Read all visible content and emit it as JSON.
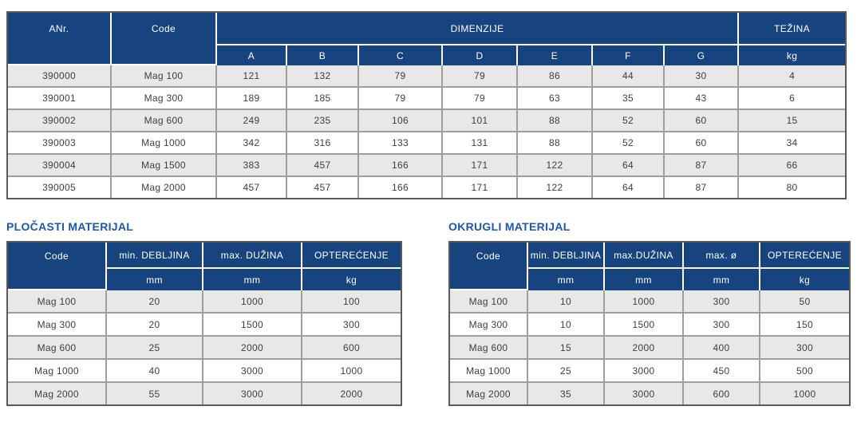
{
  "colors": {
    "header_bg": "#17437f",
    "header_text": "#ffffff",
    "title_text": "#1e56a8",
    "row_stripe_bg": "#e8e8e8",
    "row_bg": "#ffffff",
    "body_text": "#3e3e3e",
    "inner_border": "#9e9e9e",
    "outer_border": "#5a5a5a"
  },
  "main_table": {
    "headers": {
      "anr": "ANr.",
      "code": "Code",
      "dimenzije": "DIMENZIJE",
      "tezina": "TEŽINA",
      "dim_cols": [
        "A",
        "B",
        "C",
        "D",
        "E",
        "F",
        "G"
      ],
      "tezina_unit": "kg"
    },
    "rows": [
      [
        "390000",
        "Mag 100",
        "121",
        "132",
        "79",
        "79",
        "86",
        "44",
        "30",
        "4"
      ],
      [
        "390001",
        "Mag 300",
        "189",
        "185",
        "79",
        "79",
        "63",
        "35",
        "43",
        "6"
      ],
      [
        "390002",
        "Mag 600",
        "249",
        "235",
        "106",
        "101",
        "88",
        "52",
        "60",
        "15"
      ],
      [
        "390003",
        "Mag 1000",
        "342",
        "316",
        "133",
        "131",
        "88",
        "52",
        "60",
        "34"
      ],
      [
        "390004",
        "Mag 1500",
        "383",
        "457",
        "166",
        "171",
        "122",
        "64",
        "87",
        "66"
      ],
      [
        "390005",
        "Mag 2000",
        "457",
        "457",
        "166",
        "171",
        "122",
        "64",
        "87",
        "80"
      ]
    ]
  },
  "plocasti": {
    "title": "PLOČASTI MATERIJAL",
    "headers": [
      "Code",
      "min. DEBLJINA",
      "max. DUŽINA",
      "OPTEREĆENJE"
    ],
    "units": [
      "mm",
      "mm",
      "kg"
    ],
    "rows": [
      [
        "Mag 100",
        "20",
        "1000",
        "100"
      ],
      [
        "Mag 300",
        "20",
        "1500",
        "300"
      ],
      [
        "Mag 600",
        "25",
        "2000",
        "600"
      ],
      [
        "Mag 1000",
        "40",
        "3000",
        "1000"
      ],
      [
        "Mag 2000",
        "55",
        "3000",
        "2000"
      ]
    ]
  },
  "okrugli": {
    "title": "OKRUGLI MATERIJAL",
    "headers": [
      "Code",
      "min. DEBLJINA",
      "max.DUŽINA",
      "max. ø",
      "OPTEREĆENJE"
    ],
    "units": [
      "mm",
      "mm",
      "mm",
      "kg"
    ],
    "rows": [
      [
        "Mag 100",
        "10",
        "1000",
        "300",
        "50"
      ],
      [
        "Mag 300",
        "10",
        "1500",
        "300",
        "150"
      ],
      [
        "Mag 600",
        "15",
        "2000",
        "400",
        "300"
      ],
      [
        "Mag 1000",
        "25",
        "3000",
        "450",
        "500"
      ],
      [
        "Mag 2000",
        "35",
        "3000",
        "600",
        "1000"
      ]
    ]
  }
}
